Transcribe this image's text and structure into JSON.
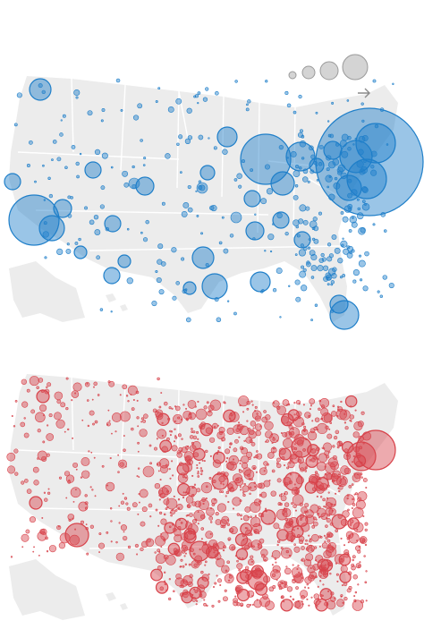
{
  "maps": [
    {
      "id": "top",
      "dot_color": "#1f7fc9",
      "dot_fill": "rgba(31,127,201,0.45)"
    },
    {
      "id": "bottom",
      "dot_color": "#d8434b",
      "dot_fill": "rgba(216,67,75,0.45)"
    }
  ],
  "legend": {
    "circle_fill": "#d4d4d4",
    "arrow_icon": "arrow-right-icon"
  },
  "colors": {
    "land": "#ececec",
    "state_borders": "#ffffff",
    "background": "#ffffff"
  }
}
